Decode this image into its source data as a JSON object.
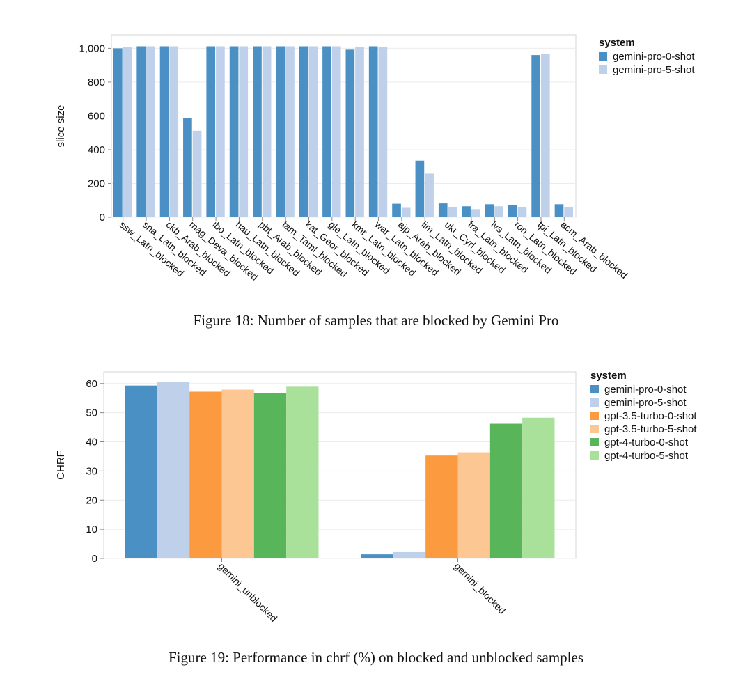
{
  "figures": [
    {
      "caption": "Figure 18: Number of samples that are blocked by Gemini Pro"
    },
    {
      "caption": "Figure 19: Performance in chrf (%) on blocked and unblocked samples"
    }
  ],
  "chart_data": [
    {
      "type": "bar",
      "title": "",
      "xlabel": "",
      "ylabel": "slice size",
      "ylim": [
        0,
        1080
      ],
      "yticks": [
        0,
        200,
        400,
        600,
        800,
        1000
      ],
      "ytick_labels": [
        "0",
        "200",
        "400",
        "600",
        "800",
        "1,000"
      ],
      "grid": true,
      "legend_title": "system",
      "legend_position": "right",
      "categories": [
        "ssw_Latn_blocked",
        "sna_Latn_blocked",
        "ckb_Arab_blocked",
        "mag_Deva_blocked",
        "ibo_Latn_blocked",
        "hau_Latn_blocked",
        "pbt_Arab_blocked",
        "tam_Taml_blocked",
        "kat_Geor_blocked",
        "gle_Latn_blocked",
        "kmr_Latn_blocked",
        "war_Latn_blocked",
        "ajp_Arab_blocked",
        "lim_Latn_blocked",
        "ukr_Cyrl_blocked",
        "fra_Latn_blocked",
        "lvs_Latn_blocked",
        "ron_Latn_blocked",
        "tpi_Latn_blocked",
        "acm_Arab_blocked"
      ],
      "series": [
        {
          "name": "gemini-pro-0-shot",
          "color": "#4a90c4",
          "values": [
            1000,
            1012,
            1012,
            588,
            1012,
            1012,
            1012,
            1012,
            1012,
            1012,
            992,
            1012,
            80,
            335,
            82,
            65,
            77,
            72,
            960,
            77
          ]
        },
        {
          "name": "gemini-pro-5-shot",
          "color": "#bed0ea",
          "values": [
            1007,
            1012,
            1012,
            512,
            1012,
            1012,
            1012,
            1012,
            1012,
            1012,
            1010,
            1010,
            60,
            258,
            62,
            48,
            65,
            62,
            967,
            62
          ]
        }
      ]
    },
    {
      "type": "bar",
      "title": "",
      "xlabel": "",
      "ylabel": "CHRF",
      "ylim": [
        0,
        64
      ],
      "yticks": [
        0,
        10,
        20,
        30,
        40,
        50,
        60
      ],
      "ytick_labels": [
        "0",
        "10",
        "20",
        "30",
        "40",
        "50",
        "60"
      ],
      "grid": true,
      "legend_title": "system",
      "legend_position": "right",
      "categories": [
        "gemini_unblocked",
        "gemini_blocked"
      ],
      "series": [
        {
          "name": "gemini-pro-0-shot",
          "color": "#4a90c4",
          "values": [
            59.3,
            1.4
          ]
        },
        {
          "name": "gemini-pro-5-shot",
          "color": "#bed0ea",
          "values": [
            60.5,
            2.4
          ]
        },
        {
          "name": "gpt-3.5-turbo-0-shot",
          "color": "#fb9a3e",
          "values": [
            57.2,
            35.3
          ]
        },
        {
          "name": "gpt-3.5-turbo-5-shot",
          "color": "#fcc793",
          "values": [
            57.9,
            36.4
          ]
        },
        {
          "name": "gpt-4-turbo-0-shot",
          "color": "#58b55a",
          "values": [
            56.7,
            46.2
          ]
        },
        {
          "name": "gpt-4-turbo-5-shot",
          "color": "#a9e09a",
          "values": [
            58.9,
            48.3
          ]
        }
      ]
    }
  ]
}
